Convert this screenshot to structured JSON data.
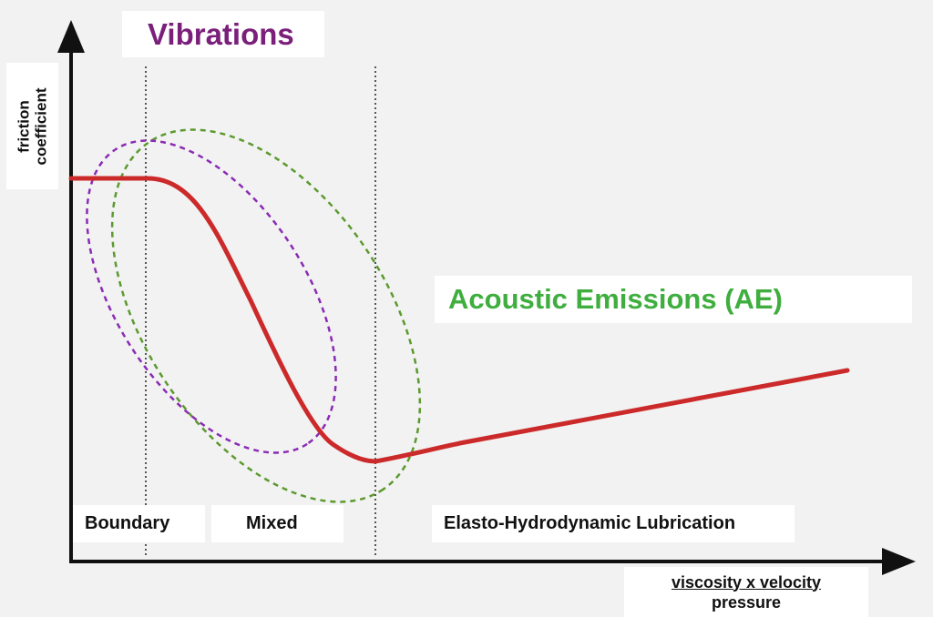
{
  "y_axis_label": {
    "line1": "friction",
    "line2": "coefficient"
  },
  "x_axis_label": {
    "numerator": "viscosity x velocity",
    "denominator": "pressure"
  },
  "annotations": {
    "vibrations": "Vibrations",
    "acoustic_emissions": "Acoustic Emissions (AE)"
  },
  "regimes": {
    "boundary": "Boundary",
    "mixed": "Mixed",
    "ehl": "Elasto-Hydrodynamic Lubrication"
  },
  "colors": {
    "curve": "#cc2a2a",
    "vibrations": "#7a1f7a",
    "vibrations_ellipse": "#8a2bb5",
    "acoustic_emissions": "#3fae3f",
    "ae_ellipse": "#5b9a2e",
    "axis": "#111111"
  }
}
